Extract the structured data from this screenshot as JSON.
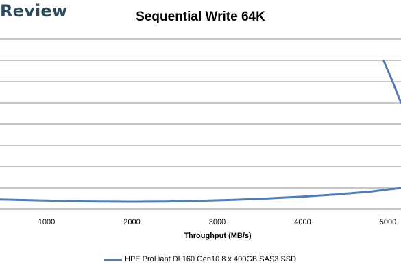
{
  "header": {
    "brand": "Review"
  },
  "chart_data": {
    "type": "line",
    "title": "Sequential Write 64K",
    "xlabel": "Throughput (MB/s)",
    "ylabel": "",
    "x_ticks": [
      1000,
      2000,
      3000,
      4000,
      5000
    ],
    "x_tick_labels": [
      "1000",
      "2000",
      "3000",
      "4000",
      "5000"
    ],
    "xlim": [
      500,
      5150
    ],
    "ylim": [
      0,
      9
    ],
    "grid": true,
    "legend_position": "bottom",
    "series": [
      {
        "name": "HPE ProLiant DL160 Gen10 8 x 400GB SAS3 SSD",
        "color": "#4f7db8",
        "x": [
          450,
          800,
          1200,
          1600,
          2000,
          2400,
          2800,
          3200,
          3600,
          4000,
          4400,
          4800,
          5000,
          5150
        ],
        "y": [
          0.52,
          0.48,
          0.44,
          0.41,
          0.4,
          0.41,
          0.45,
          0.5,
          0.57,
          0.66,
          0.78,
          0.93,
          1.04,
          1.12
        ]
      },
      {
        "name": "",
        "color": "#4f7db8",
        "x": [
          4950,
          5050,
          5150
        ],
        "y": [
          7.85,
          6.8,
          5.65
        ]
      }
    ]
  }
}
